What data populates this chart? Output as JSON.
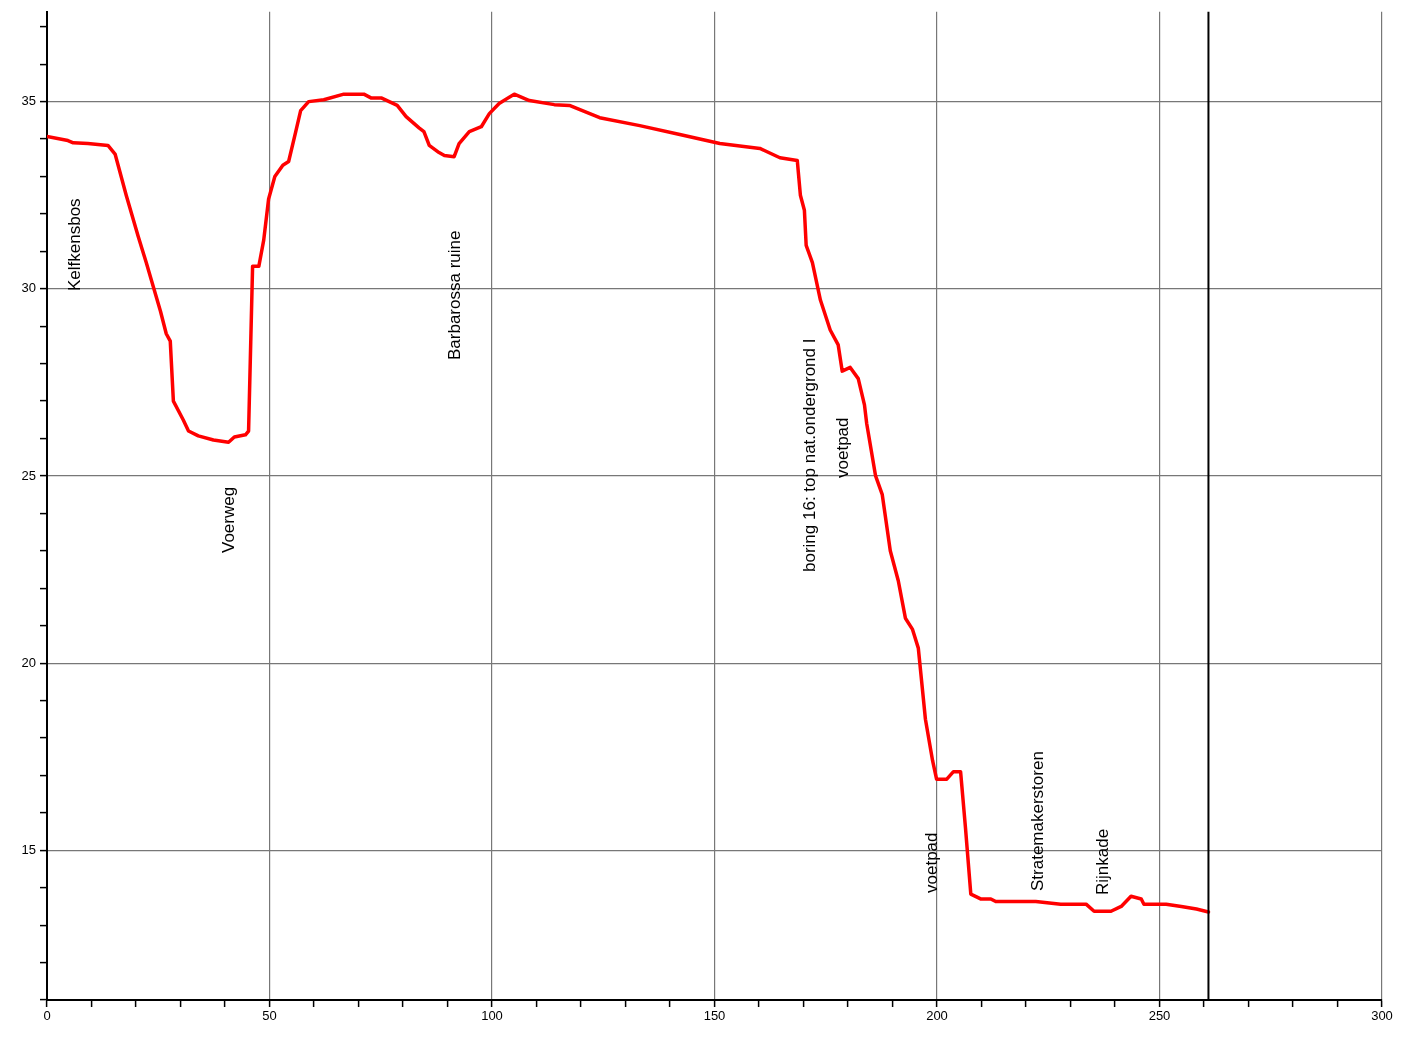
{
  "chart_data": {
    "type": "line",
    "x": [
      0,
      4.7,
      5.9,
      9.2,
      13.7,
      15.3,
      17.8,
      20.5,
      22.3,
      25.5,
      26.8,
      27.7,
      28.4,
      30.6,
      31.8,
      34.0,
      37.4,
      40.8,
      42.1,
      44.6,
      45.3,
      46.2,
      47.6,
      48.7,
      49.8,
      51.2,
      53.0,
      54.3,
      55.9,
      57.0,
      58.8,
      62.2,
      66.7,
      71.2,
      72.8,
      75.1,
      78.7,
      80.7,
      83.6,
      84.7,
      85.9,
      88.1,
      89.3,
      91.5,
      92.6,
      94.9,
      97.6,
      99.4,
      101.6,
      105,
      108.4,
      114,
      117.4,
      124.2,
      133.2,
      142.2,
      151.2,
      160.2,
      164.7,
      168.6,
      169.3,
      170.2,
      170.6,
      172,
      173.8,
      176,
      177.8,
      178.7,
      180.5,
      182.3,
      183.7,
      184.2,
      186.2,
      187.7,
      189.5,
      191.3,
      192.9,
      194.5,
      195.8,
      197.4,
      199,
      199.9,
      202.2,
      203.7,
      205.3,
      206.4,
      207.6,
      209.8,
      212.1,
      213.2,
      222.2,
      227.8,
      233.5,
      235.3,
      239.1,
      241.4,
      243.6,
      245.9,
      246.5,
      251.5,
      254.9,
      258.3,
      261
    ],
    "series": [
      {
        "color": "#ff0000",
        "values": [
          34.07,
          33.96,
          33.9,
          33.88,
          33.83,
          33.6,
          32.5,
          31.4,
          30.7,
          29.4,
          28.8,
          28.6,
          27.0,
          26.5,
          26.2,
          26.07,
          25.96,
          25.9,
          26.04,
          26.1,
          26.2,
          30.6,
          30.6,
          31.3,
          32.4,
          33.0,
          33.3,
          33.4,
          34.2,
          34.76,
          35.0,
          35.05,
          35.2,
          35.2,
          35.1,
          35.1,
          34.9,
          34.6,
          34.3,
          34.2,
          33.83,
          33.64,
          33.56,
          33.53,
          33.88,
          34.2,
          34.33,
          34.68,
          34.95,
          35.2,
          35.03,
          34.92,
          34.9,
          34.57,
          34.36,
          34.12,
          33.88,
          33.75,
          33.5,
          33.43,
          32.5,
          32.1,
          31.16,
          30.7,
          29.7,
          28.9,
          28.5,
          27.8,
          27.9,
          27.6,
          26.9,
          26.4,
          25.0,
          24.5,
          23.0,
          22.2,
          21.2,
          20.9,
          20.4,
          18.5,
          17.4,
          16.9,
          16.9,
          17.1,
          17.1,
          15.6,
          13.83,
          13.7,
          13.7,
          13.63,
          13.63,
          13.56,
          13.56,
          13.37,
          13.37,
          13.5,
          13.77,
          13.7,
          13.56,
          13.56,
          13.5,
          13.43,
          13.35
        ]
      }
    ],
    "xlim": [
      0,
      300
    ],
    "xticks": [
      0,
      {
        "value": 10,
        "label": null
      },
      {
        "value": 20,
        "label": null
      },
      {
        "value": 30,
        "label": null
      },
      {
        "value": 40,
        "label": null
      },
      50,
      {
        "value": 60,
        "label": null
      },
      {
        "value": 70,
        "label": null
      },
      {
        "value": 80,
        "label": null
      },
      {
        "value": 90,
        "label": null
      },
      100,
      {
        "value": 110,
        "label": null
      },
      {
        "value": 120,
        "label": null
      },
      {
        "value": 130,
        "label": null
      },
      {
        "value": 140,
        "label": null
      },
      150,
      {
        "value": 160,
        "label": null
      },
      {
        "value": 170,
        "label": null
      },
      {
        "value": 180,
        "label": null
      },
      {
        "value": 190,
        "label": null
      },
      200,
      {
        "value": 210,
        "label": null
      },
      {
        "value": 220,
        "label": null
      },
      {
        "value": 230,
        "label": null
      },
      {
        "value": 240,
        "label": null
      },
      250,
      {
        "value": 260,
        "label": null
      },
      {
        "value": 270,
        "label": null
      },
      {
        "value": 280,
        "label": null
      },
      {
        "value": 290,
        "label": null
      },
      300
    ],
    "ylim": [
      11,
      37.4
    ],
    "yticks": [
      {
        "value": 11,
        "label": null
      },
      {
        "value": 12,
        "label": null
      },
      {
        "value": 13,
        "label": null
      },
      {
        "value": 14,
        "label": null
      },
      15,
      {
        "value": 16,
        "label": null
      },
      {
        "value": 17,
        "label": null
      },
      {
        "value": 18,
        "label": null
      },
      {
        "value": 19,
        "label": null
      },
      20,
      {
        "value": 21,
        "label": null
      },
      {
        "value": 22,
        "label": null
      },
      {
        "value": 23,
        "label": null
      },
      {
        "value": 24,
        "label": null
      },
      25,
      {
        "value": 26,
        "label": null
      },
      {
        "value": 27,
        "label": null
      },
      {
        "value": 28,
        "label": null
      },
      {
        "value": 29,
        "label": null
      },
      30,
      {
        "value": 31,
        "label": null
      },
      {
        "value": 32,
        "label": null
      },
      {
        "value": 33,
        "label": null
      },
      {
        "value": 34,
        "label": null
      },
      35,
      {
        "value": 36,
        "label": null
      },
      {
        "value": 37,
        "label": null
      }
    ],
    "grid": true,
    "legend": false,
    "marker": "none",
    "line_style": "solid",
    "ref_lines": [
      {
        "axis": "x",
        "value": 261,
        "color": "#000000"
      }
    ],
    "annotations": [
      "Kelfkensbos",
      "Voerweg",
      "Barbarossa ruine",
      "boring 16: top nat.ondergrond I",
      "voetpad",
      "voetpad",
      "Stratemakerstoren",
      "Rijnkade"
    ]
  }
}
